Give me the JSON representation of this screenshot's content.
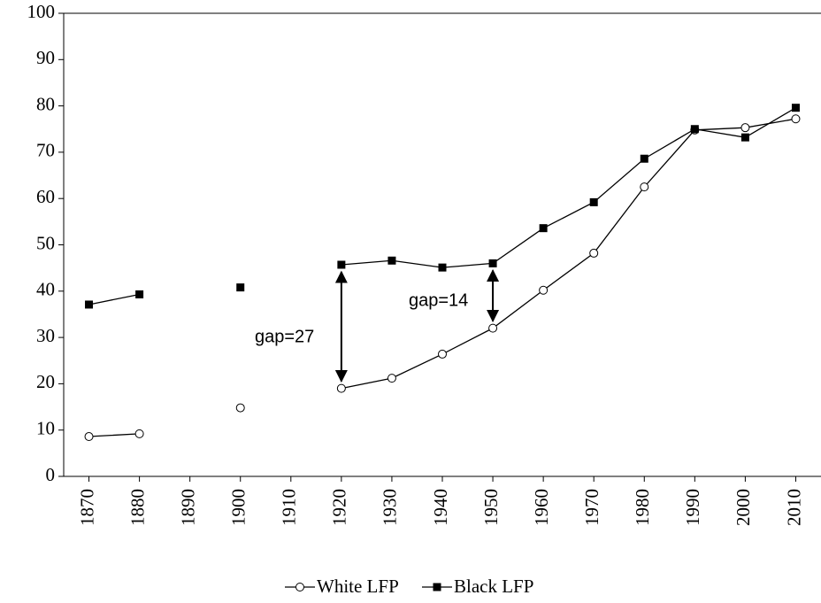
{
  "chart_data": {
    "type": "line",
    "x": [
      1870,
      1880,
      1890,
      1900,
      1910,
      1920,
      1930,
      1940,
      1950,
      1960,
      1970,
      1980,
      1990,
      2000,
      2010
    ],
    "series": [
      {
        "name": "White LFP",
        "color": "#000000",
        "marker": "circle",
        "values": [
          8.6,
          9.2,
          null,
          14.8,
          null,
          19.0,
          21.2,
          26.4,
          32.0,
          40.2,
          48.2,
          62.5,
          74.8,
          75.3,
          77.2
        ]
      },
      {
        "name": "Black LFP",
        "color": "#000000",
        "marker": "square",
        "values": [
          37.1,
          39.3,
          null,
          40.8,
          null,
          45.7,
          46.6,
          45.1,
          46.0,
          53.6,
          59.2,
          68.6,
          75.0,
          73.2,
          79.6
        ]
      }
    ],
    "xlim": [
      1865,
      2015
    ],
    "xticks": [
      1870,
      1880,
      1890,
      1900,
      1910,
      1920,
      1930,
      1940,
      1950,
      1960,
      1970,
      1980,
      1990,
      2000,
      2010
    ],
    "ylim": [
      0,
      100
    ],
    "yticks": [
      0,
      10,
      20,
      30,
      40,
      50,
      60,
      70,
      80,
      90,
      100
    ],
    "grid": false,
    "legend": "bottom",
    "annotations": [
      "gap=27",
      "gap=14"
    ]
  }
}
